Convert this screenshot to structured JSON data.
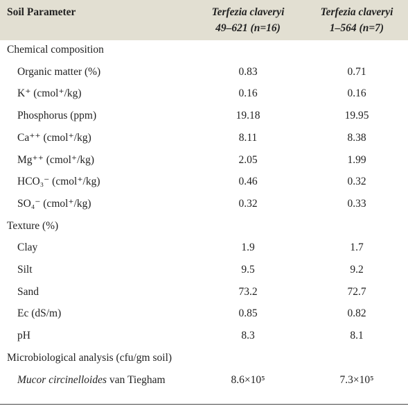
{
  "table": {
    "header": {
      "parameter": "Soil Parameter",
      "columns": [
        {
          "species": "Terfezia claveryi",
          "strain": "49–621 (n=16)"
        },
        {
          "species": "Terfezia claveryi",
          "strain": "1–564 (n=7)"
        }
      ]
    },
    "sections": [
      {
        "title": "Chemical composition",
        "rows": [
          {
            "parameter": "Organic matter (%)",
            "values": [
              "0.83",
              "0.71"
            ]
          },
          {
            "parameter": "K⁺ (cmol⁺/kg)",
            "values": [
              "0.16",
              "0.16"
            ]
          },
          {
            "parameter": "Phosphorus (ppm)",
            "values": [
              "19.18",
              "19.95"
            ]
          },
          {
            "parameter": "Ca⁺⁺ (cmol⁺/kg)",
            "values": [
              "8.11",
              "8.38"
            ]
          },
          {
            "parameter": "Mg⁺⁺ (cmol⁺/kg)",
            "values": [
              "2.05",
              "1.99"
            ]
          },
          {
            "parameter": "HCO₃⁻ (cmol⁺/kg)",
            "values": [
              "0.46",
              "0.32"
            ]
          },
          {
            "parameter": "SO₄⁻ (cmol⁺/kg)",
            "values": [
              "0.32",
              "0.33"
            ]
          }
        ]
      },
      {
        "title": "Texture (%)",
        "rows": [
          {
            "parameter": "Clay",
            "values": [
              "1.9",
              "1.7"
            ]
          },
          {
            "parameter": "Silt",
            "values": [
              "9.5",
              "9.2"
            ]
          },
          {
            "parameter": "Sand",
            "values": [
              "73.2",
              "72.7"
            ]
          },
          {
            "parameter": "Ec (dS/m)",
            "values": [
              "0.85",
              "0.82"
            ]
          },
          {
            "parameter": "pH",
            "values": [
              "8.3",
              "8.1"
            ]
          }
        ]
      },
      {
        "title": "Microbiological analysis (cfu/gm soil)",
        "rows": [
          {
            "parameter_italic": "Mucor circinelloides",
            "parameter": "van Tiegham",
            "values": [
              "8.6×10⁵",
              "7.3×10⁵"
            ]
          }
        ]
      }
    ]
  }
}
